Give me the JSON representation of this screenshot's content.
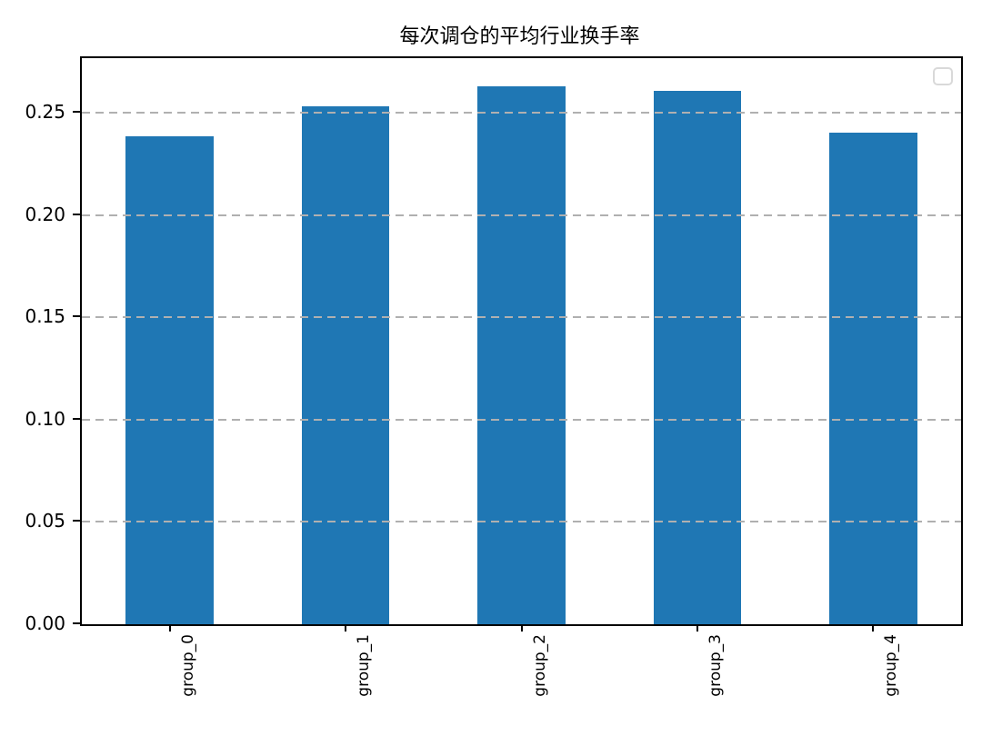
{
  "figure": {
    "background": "#ffffff"
  },
  "chart_data": {
    "type": "bar",
    "title": "每次调仓的平均行业换手率",
    "xlabel": "",
    "ylabel": "",
    "categories": [
      "group_0",
      "group_1",
      "group_2",
      "group_3",
      "group_4"
    ],
    "values": [
      0.2385,
      0.2532,
      0.2627,
      0.2606,
      0.2401
    ],
    "ylim": [
      0,
      0.2766
    ],
    "ytick_labels": [
      "0.00",
      "0.05",
      "0.10",
      "0.15",
      "0.20",
      "0.25"
    ],
    "ytick_values": [
      0.0,
      0.05,
      0.1,
      0.15,
      0.2,
      0.25
    ],
    "x_tick_rotation": 90,
    "bar_color": "#1f77b4",
    "bar_width_fraction": 0.5,
    "grid": {
      "axis": "y",
      "line_style": "dashed",
      "color": "#b0b0b0",
      "above_bars": true
    },
    "spine_color": "#000000",
    "legend": {
      "visible": true,
      "entries": [],
      "position": "upper right"
    }
  }
}
